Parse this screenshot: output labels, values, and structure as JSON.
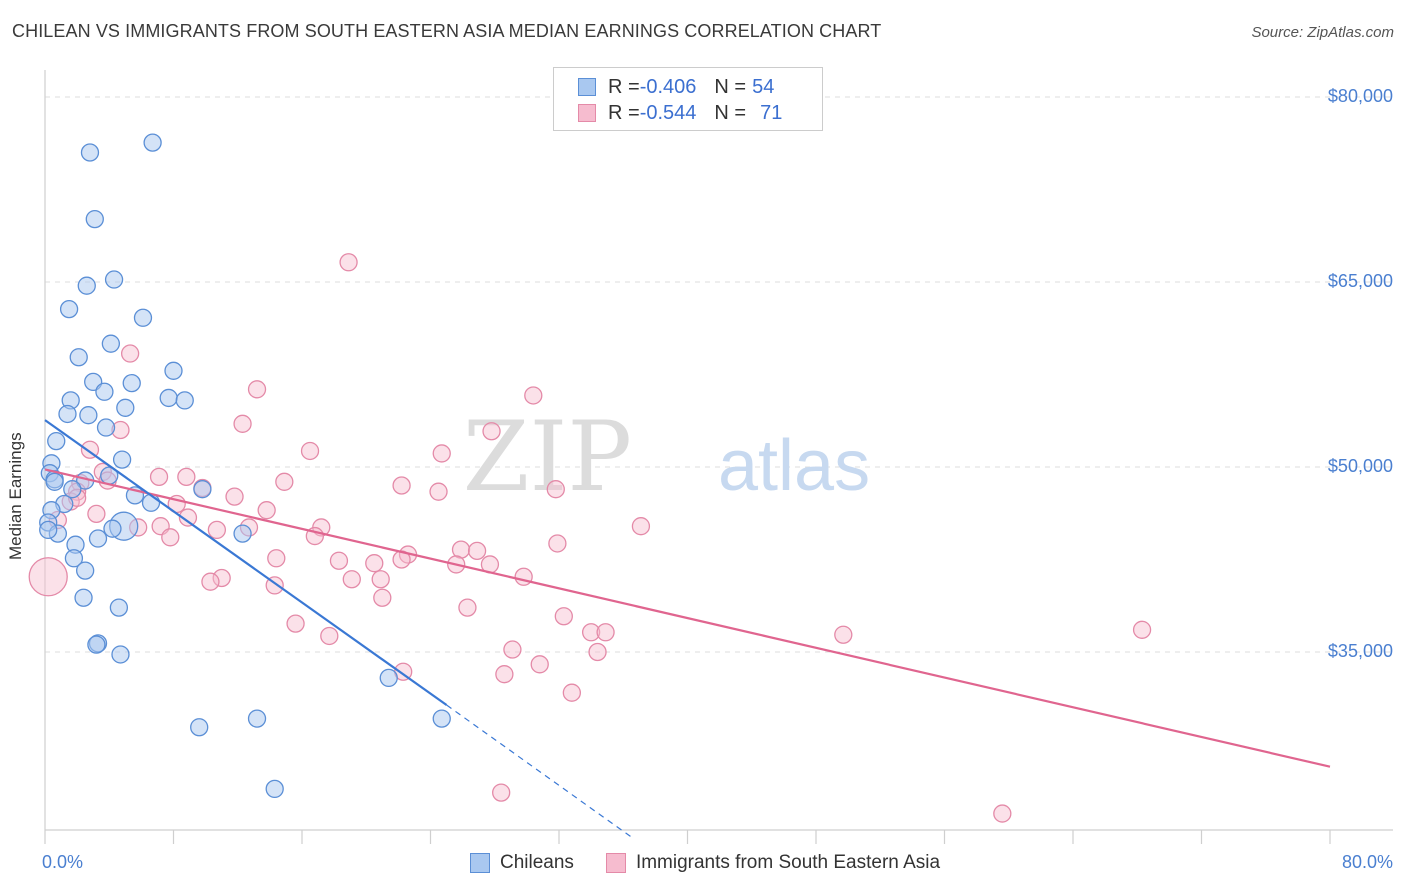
{
  "header": {
    "title": "CHILEAN VS IMMIGRANTS FROM SOUTH EASTERN ASIA MEDIAN EARNINGS CORRELATION CHART",
    "source": "Source: ZipAtlas.com"
  },
  "watermark": {
    "zip": "ZIP",
    "atlas": "atlas"
  },
  "legend": {
    "rows": [
      {
        "r_label": "R = ",
        "r_value": "-0.406",
        "n_label": "N = ",
        "n_value": "54"
      },
      {
        "r_label": "R = ",
        "r_value": "-0.544",
        "n_label": "N = ",
        "n_value": "71"
      }
    ]
  },
  "colors": {
    "blue_fill": "#a9c8f0",
    "blue_stroke": "#5b8fd6",
    "blue_line": "#3a78d4",
    "pink_fill": "#f6bccf",
    "pink_stroke": "#e48aa8",
    "pink_line": "#e0658f",
    "tick_text": "#4a7fd0",
    "grid": "#dddddd"
  },
  "chart_data": {
    "type": "scatter",
    "title": "CHILEAN VS IMMIGRANTS FROM SOUTH EASTERN ASIA MEDIAN EARNINGS CORRELATION CHART",
    "xlabel": "",
    "ylabel": "Median Earnings",
    "xlim": [
      0,
      80
    ],
    "ylim": [
      19000,
      83000
    ],
    "x_tick_labels": [
      "0.0%",
      "80.0%"
    ],
    "y_ticks": [
      {
        "value": 35000,
        "label": "$35,000"
      },
      {
        "value": 50000,
        "label": "$50,000"
      },
      {
        "value": 65000,
        "label": "$65,000"
      },
      {
        "value": 80000,
        "label": "$80,000"
      }
    ],
    "series": [
      {
        "name": "Chileans",
        "r": -0.406,
        "n": 54,
        "trend": {
          "x0": 0,
          "y0": 53800,
          "x1": 25,
          "y1": 30700,
          "dash_to_x": 36.5,
          "dash_to_y": 20000
        },
        "points": [
          [
            2.8,
            75.5
          ],
          [
            6.7,
            76.3
          ],
          [
            3.1,
            70.1
          ],
          [
            4.3,
            65.2
          ],
          [
            2.6,
            64.7
          ],
          [
            1.5,
            62.8
          ],
          [
            6.1,
            62.1
          ],
          [
            4.1,
            60.0
          ],
          [
            2.1,
            58.9
          ],
          [
            8.0,
            57.8
          ],
          [
            3.0,
            56.9
          ],
          [
            3.7,
            56.1
          ],
          [
            5.4,
            56.8
          ],
          [
            1.6,
            55.4
          ],
          [
            7.7,
            55.6
          ],
          [
            8.7,
            55.4
          ],
          [
            5.0,
            54.8
          ],
          [
            1.4,
            54.3
          ],
          [
            2.7,
            54.2
          ],
          [
            3.8,
            53.2
          ],
          [
            0.7,
            52.1
          ],
          [
            4.8,
            50.6
          ],
          [
            0.4,
            50.3
          ],
          [
            0.3,
            49.5
          ],
          [
            0.6,
            49.0
          ],
          [
            2.5,
            48.9
          ],
          [
            4.0,
            49.3
          ],
          [
            1.7,
            48.2
          ],
          [
            9.8,
            48.2
          ],
          [
            5.6,
            47.7
          ],
          [
            1.2,
            47.0
          ],
          [
            6.6,
            47.1
          ],
          [
            0.4,
            46.5
          ],
          [
            0.2,
            45.5
          ],
          [
            4.9,
            45.2
          ],
          [
            4.2,
            45.0
          ],
          [
            0.8,
            44.6
          ],
          [
            3.3,
            44.2
          ],
          [
            12.3,
            44.6
          ],
          [
            0.2,
            44.9
          ],
          [
            1.9,
            43.7
          ],
          [
            1.8,
            42.6
          ],
          [
            2.5,
            41.6
          ],
          [
            2.4,
            39.4
          ],
          [
            4.6,
            38.6
          ],
          [
            3.3,
            35.7
          ],
          [
            3.2,
            35.6
          ],
          [
            4.7,
            34.8
          ],
          [
            21.4,
            32.9
          ],
          [
            9.6,
            28.9
          ],
          [
            13.2,
            29.6
          ],
          [
            24.7,
            29.6
          ],
          [
            14.3,
            23.9
          ],
          [
            0.6,
            48.8
          ]
        ]
      },
      {
        "name": "Immigrants from South Eastern Asia",
        "r": -0.544,
        "n": 71,
        "trend": {
          "x0": 0,
          "y0": 49800,
          "x1": 80,
          "y1": 25700
        },
        "points": [
          [
            18.9,
            66.6
          ],
          [
            5.3,
            59.2
          ],
          [
            13.2,
            56.3
          ],
          [
            30.4,
            55.8
          ],
          [
            12.3,
            53.5
          ],
          [
            4.7,
            53.0
          ],
          [
            27.8,
            52.9
          ],
          [
            2.8,
            51.4
          ],
          [
            16.5,
            51.3
          ],
          [
            24.7,
            51.1
          ],
          [
            7.1,
            49.2
          ],
          [
            8.8,
            49.2
          ],
          [
            3.6,
            49.6
          ],
          [
            3.9,
            48.9
          ],
          [
            2.2,
            48.7
          ],
          [
            14.9,
            48.8
          ],
          [
            22.2,
            48.5
          ],
          [
            31.8,
            48.2
          ],
          [
            9.8,
            48.3
          ],
          [
            2.0,
            48.0
          ],
          [
            24.5,
            48.0
          ],
          [
            11.8,
            47.6
          ],
          [
            1.6,
            47.2
          ],
          [
            2.0,
            47.5
          ],
          [
            8.2,
            47.0
          ],
          [
            13.8,
            46.5
          ],
          [
            8.9,
            45.9
          ],
          [
            3.2,
            46.2
          ],
          [
            0.8,
            45.7
          ],
          [
            5.8,
            45.1
          ],
          [
            7.2,
            45.2
          ],
          [
            10.7,
            44.9
          ],
          [
            12.7,
            45.1
          ],
          [
            17.2,
            45.1
          ],
          [
            37.1,
            45.2
          ],
          [
            7.8,
            44.3
          ],
          [
            16.8,
            44.4
          ],
          [
            31.9,
            43.8
          ],
          [
            25.9,
            43.3
          ],
          [
            25.6,
            42.1
          ],
          [
            26.9,
            43.2
          ],
          [
            22.6,
            42.9
          ],
          [
            14.4,
            42.6
          ],
          [
            18.3,
            42.4
          ],
          [
            20.5,
            42.2
          ],
          [
            22.2,
            42.5
          ],
          [
            27.7,
            42.1
          ],
          [
            0.2,
            41.1
          ],
          [
            29.8,
            41.1
          ],
          [
            11.0,
            41.0
          ],
          [
            10.3,
            40.7
          ],
          [
            19.1,
            40.9
          ],
          [
            20.9,
            40.9
          ],
          [
            14.3,
            40.4
          ],
          [
            21.0,
            39.4
          ],
          [
            26.3,
            38.6
          ],
          [
            32.3,
            37.9
          ],
          [
            15.6,
            37.3
          ],
          [
            34.0,
            36.6
          ],
          [
            34.9,
            36.6
          ],
          [
            68.3,
            36.8
          ],
          [
            49.7,
            36.4
          ],
          [
            17.7,
            36.3
          ],
          [
            29.1,
            35.2
          ],
          [
            34.4,
            35.0
          ],
          [
            30.8,
            34.0
          ],
          [
            22.3,
            33.4
          ],
          [
            28.6,
            33.2
          ],
          [
            32.8,
            31.7
          ],
          [
            28.4,
            23.6
          ],
          [
            59.6,
            21.9
          ]
        ]
      }
    ]
  }
}
